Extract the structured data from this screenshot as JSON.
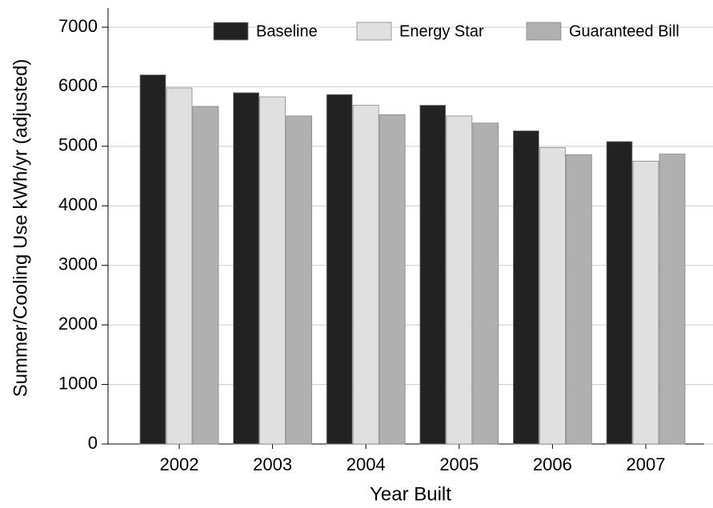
{
  "chart_data": {
    "type": "bar",
    "x_label": "Year Built",
    "y_label": "Summer/Cooling Use kWh/yr (adjusted)",
    "categories": [
      "2002",
      "2003",
      "2004",
      "2005",
      "2006",
      "2007"
    ],
    "series": [
      {
        "name": "Baseline",
        "color": "#222222",
        "values": [
          6200,
          5900,
          5870,
          5690,
          5260,
          5080
        ]
      },
      {
        "name": "Energy Star",
        "color": "#e0e0e0",
        "values": [
          5980,
          5830,
          5690,
          5510,
          4980,
          4750
        ]
      },
      {
        "name": "Guaranteed Bill",
        "color": "#b0b0b0",
        "values": [
          5670,
          5510,
          5530,
          5390,
          4860,
          4870
        ]
      }
    ],
    "ylim": [
      0,
      7000
    ],
    "yticks": [
      0,
      1000,
      2000,
      3000,
      4000,
      5000,
      6000,
      7000
    ],
    "grid": true,
    "legend_position": "top"
  }
}
